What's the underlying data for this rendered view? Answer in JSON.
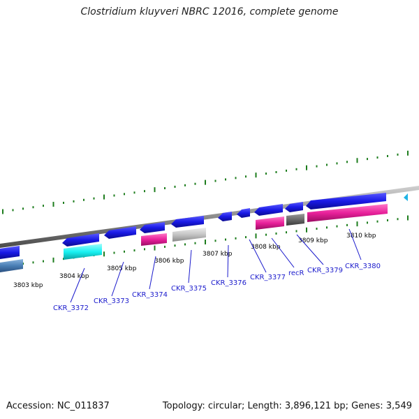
{
  "title": "Clostridium kluyveri NBRC 12016, complete genome",
  "footer": {
    "accession": "Accession: NC_011837",
    "stats": "Topology: circular; Length: 3,896,121 bp; Genes: 3,549"
  },
  "colors": {
    "background": "#ffffff",
    "backbone": "#8c8c8c",
    "tick": "#1e7d1e",
    "label_text": "#1a1acc",
    "label_line": "#1a1acc",
    "gene_blue": "#1a1ae6",
    "gene_cyan": "#19f2f2",
    "gene_magenta": "#e8209a",
    "gene_lightgray": "#c0c0c0",
    "gene_darkgray": "#6a6a6a",
    "gene_steelblue": "#4a7fb5"
  },
  "scale_labels": [
    "3803 kbp",
    "3804 kbp",
    "3805 kbp",
    "3806 kbp",
    "3807 kbp",
    "3808 kbp",
    "3809 kbp",
    "3810 kbp"
  ],
  "gene_labels": [
    "CKR_3372",
    "CKR_3373",
    "CKR_3374",
    "CKR_3375",
    "CKR_3376",
    "CKR_3377",
    "recR",
    "CKR_3379",
    "CKR_3380"
  ],
  "marker_icon": "cyan-arrow-marker-icon"
}
